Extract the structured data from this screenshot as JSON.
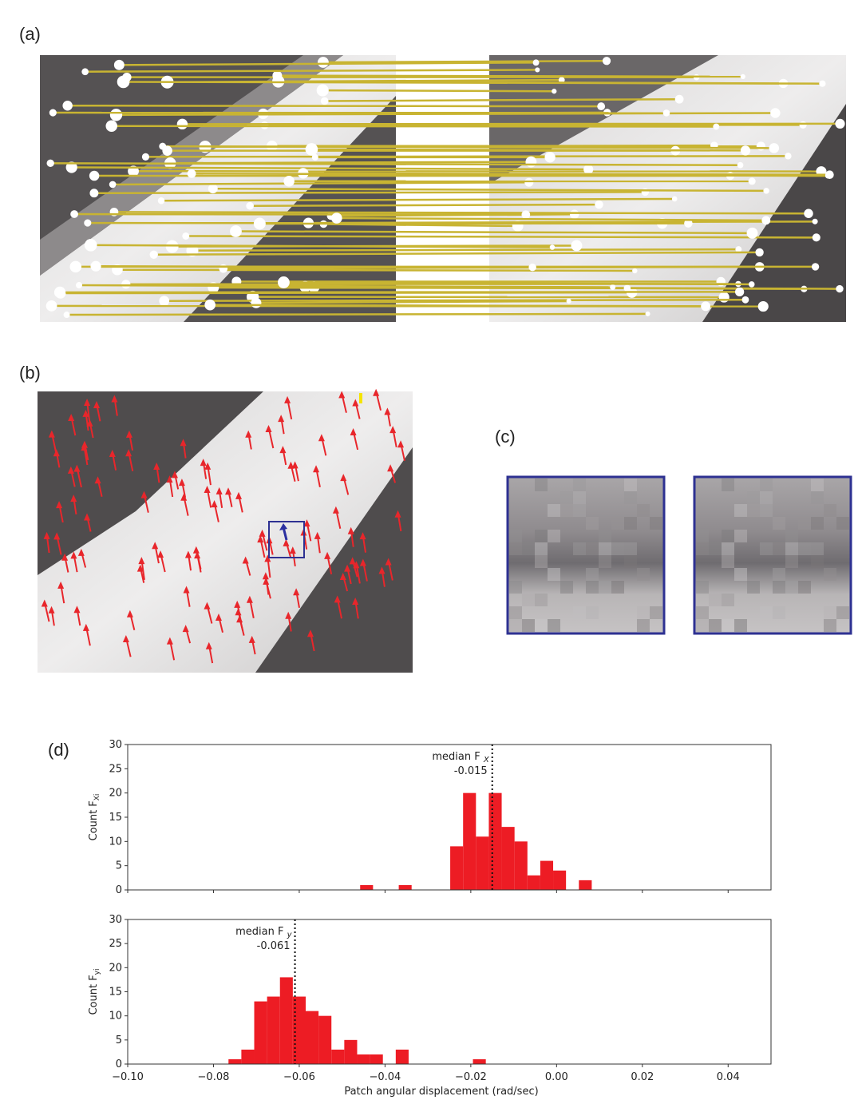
{
  "panels": {
    "a": "(a)",
    "b": "(b)",
    "c": "(c)",
    "d": "(d)"
  },
  "colors": {
    "match_line": "#c8b432",
    "arrow": "#e8262b",
    "selected_arrow": "#2b2fa0",
    "patch_box": "#2e3192",
    "bar": "#ed1c24",
    "special_arrow": "#f5e400"
  },
  "chart_data": [
    {
      "type": "bar",
      "title": "",
      "ylabel": "Count F_{X_i}",
      "ylabel_main": "Count F",
      "ylabel_sub": "Xi",
      "xlabel": "",
      "xlim": [
        -0.1,
        0.05
      ],
      "ylim": [
        0,
        30
      ],
      "yticks": [
        "0",
        "5",
        "10",
        "15",
        "20",
        "25",
        "30"
      ],
      "xticks": [
        -0.1,
        -0.08,
        -0.06,
        -0.04,
        -0.02,
        0.0,
        0.02,
        0.04
      ],
      "bin_start": -0.0458,
      "bin_width": 0.003,
      "counts": [
        1,
        0,
        0,
        1,
        0,
        0,
        0,
        9,
        20,
        11,
        20,
        13,
        10,
        3,
        6,
        4,
        0,
        2
      ],
      "median": -0.015,
      "median_label": "median F",
      "median_sub": "X",
      "median_value_label": "-0.015"
    },
    {
      "type": "bar",
      "title": "",
      "ylabel": "Count F_{y_i}",
      "ylabel_main": "Count F",
      "ylabel_sub": "yi",
      "xlabel": "Patch angular displacement (rad/sec)",
      "xlim": [
        -0.1,
        0.05
      ],
      "ylim": [
        0,
        30
      ],
      "yticks": [
        "0",
        "5",
        "10",
        "15",
        "20",
        "25",
        "30"
      ],
      "xticks": [
        -0.1,
        -0.08,
        -0.06,
        -0.04,
        -0.02,
        0.0,
        0.02,
        0.04
      ],
      "xtick_labels": [
        "−0.10",
        "−0.08",
        "−0.06",
        "−0.04",
        "−0.02",
        "0.00",
        "0.02",
        "0.04"
      ],
      "bin_start": -0.0765,
      "bin_width": 0.003,
      "counts": [
        1,
        3,
        13,
        14,
        18,
        14,
        11,
        10,
        3,
        5,
        2,
        2,
        0,
        3,
        0,
        0,
        0,
        0,
        0,
        1
      ],
      "median": -0.061,
      "median_label": "median F",
      "median_sub": "y",
      "median_value_label": "-0.061"
    }
  ]
}
